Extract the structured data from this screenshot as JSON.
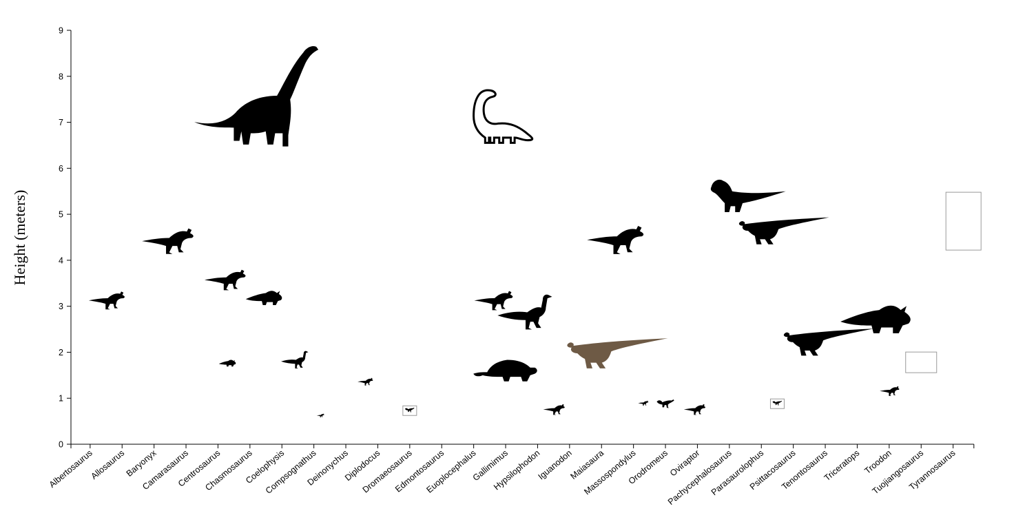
{
  "chart_data": {
    "type": "scatter",
    "title": "",
    "xlabel": "",
    "ylabel": "Height (meters)",
    "ylim": [
      0,
      9
    ],
    "yticks": [
      0,
      1,
      2,
      3,
      4,
      5,
      6,
      7,
      8,
      9
    ],
    "grid": false,
    "categories": [
      "Albertosaurus",
      "Allosaurus",
      "Baryonyx",
      "Camarasaurus",
      "Centrosaurus",
      "Chasmosaurus",
      "Coelophysis",
      "Compsognathus",
      "Deinonychus",
      "Diplodocus",
      "Dromaeosaurus",
      "Edmontosaurus",
      "Euoplocephalus",
      "Gallimimus",
      "Hypsilophodon",
      "Iguanodon",
      "Maiasaura",
      "Massospondylus",
      "Orodromeus",
      "Oviraptor",
      "Pachycephalosaurus",
      "Parasaurolophus",
      "Psittacosaurus",
      "Tenontosaurus",
      "Triceratops",
      "Troodon",
      "Tuojiangosaurus",
      "Tyrannosaurus"
    ],
    "points": [
      {
        "x": 1.1,
        "y": 3.15,
        "size": 0.7,
        "shape": "theropod"
      },
      {
        "x": 3.0,
        "y": 4.45,
        "size": 1.0,
        "shape": "theropod"
      },
      {
        "x": 4.8,
        "y": 3.6,
        "size": 0.8,
        "shape": "theropod"
      },
      {
        "x": 5.8,
        "y": 7.7,
        "size": 2.5,
        "shape": "sauropod"
      },
      {
        "x": 4.9,
        "y": 1.77,
        "size": 0.35,
        "shape": "ceratopsian"
      },
      {
        "x": 6.05,
        "y": 3.2,
        "size": 0.75,
        "shape": "ceratopsian"
      },
      {
        "x": 7.0,
        "y": 1.8,
        "size": 0.55,
        "shape": "ornithomimid"
      },
      {
        "x": 7.8,
        "y": 0.63,
        "size": 0.15,
        "shape": "theropod"
      },
      {
        "x": 9.2,
        "y": 1.37,
        "size": 0.3,
        "shape": "theropod"
      },
      {
        "x": 13.4,
        "y": 7.0,
        "size": 1.5,
        "shape": "outline-sauropod"
      },
      {
        "x": 10.6,
        "y": 0.73,
        "size": 0.3,
        "shape": "boxed-theropod",
        "box": true
      },
      {
        "x": 17.2,
        "y": 2.1,
        "size": 1.9,
        "shape": "hadrosaur",
        "color": "#6e5a45"
      },
      {
        "x": 13.6,
        "y": 1.6,
        "size": 1.3,
        "shape": "ankylosaur"
      },
      {
        "x": 14.2,
        "y": 2.8,
        "size": 1.1,
        "shape": "ornithomimid"
      },
      {
        "x": 13.2,
        "y": 3.15,
        "size": 0.75,
        "shape": "theropod"
      },
      {
        "x": 15.1,
        "y": 0.77,
        "size": 0.42,
        "shape": "theropod"
      },
      {
        "x": 17.0,
        "y": 4.48,
        "size": 1.1,
        "shape": "theropod"
      },
      {
        "x": 17.9,
        "y": 0.9,
        "size": 0.2,
        "shape": "theropod"
      },
      {
        "x": 18.6,
        "y": 0.9,
        "size": 0.35,
        "shape": "theropod-feathered"
      },
      {
        "x": 19.5,
        "y": 0.77,
        "size": 0.42,
        "shape": "theropod"
      },
      {
        "x": 21.2,
        "y": 5.5,
        "size": 1.5,
        "shape": "pachycephalosaur"
      },
      {
        "x": 22.4,
        "y": 4.75,
        "size": 1.7,
        "shape": "hadrosaur"
      },
      {
        "x": 22.1,
        "y": 0.88,
        "size": 0.3,
        "shape": "boxed-theropod",
        "box": true
      },
      {
        "x": 23.8,
        "y": 2.33,
        "size": 1.7,
        "shape": "hadrosaur"
      },
      {
        "x": 25.2,
        "y": 2.75,
        "size": 1.45,
        "shape": "ceratopsian"
      },
      {
        "x": 25.6,
        "y": 1.17,
        "size": 0.38,
        "shape": "theropod"
      },
      {
        "x": 26.6,
        "y": 1.78,
        "size": 0.6,
        "shape": "stegosaur",
        "box": true
      },
      {
        "x": 28.0,
        "y": 4.85,
        "size": 1.0,
        "shape": "trex-cropped",
        "box": true
      }
    ]
  }
}
